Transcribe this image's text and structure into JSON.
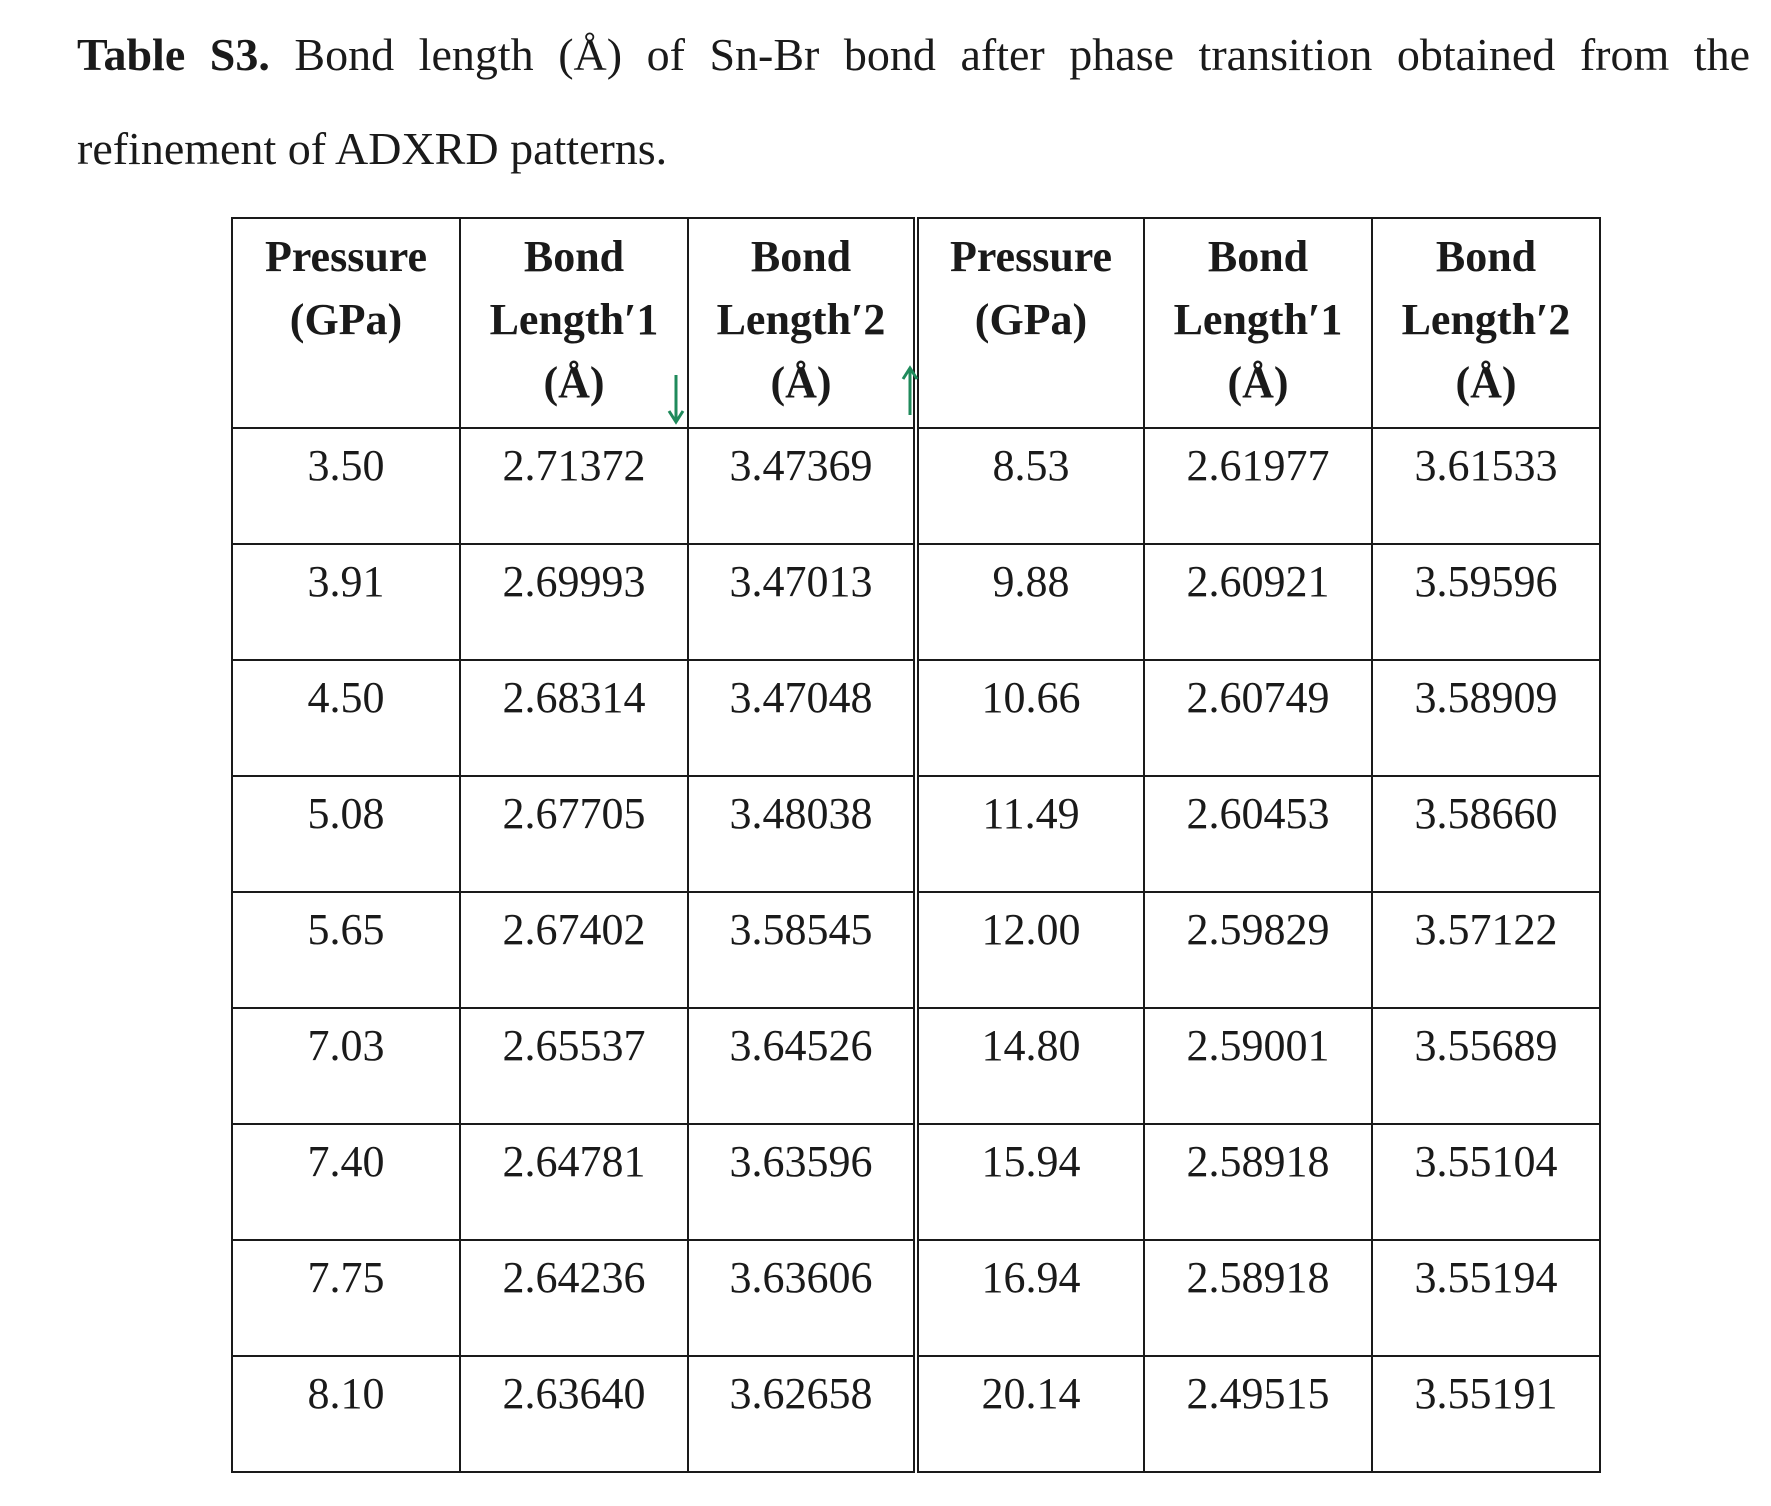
{
  "caption": {
    "label": "Table S3.",
    "text": " Bond length (Å) of Sn-Br bond after phase transition obtained from the refinement of ADXRD patterns."
  },
  "table": {
    "headers": [
      [
        "Pressure",
        "(GPa)",
        ""
      ],
      [
        "Bond",
        "Length′1",
        "(Å)"
      ],
      [
        "Bond",
        "Length′2",
        "(Å)"
      ],
      [
        "Pressure",
        "(GPa)",
        ""
      ],
      [
        "Bond",
        "Length′1",
        "(Å)"
      ],
      [
        "Bond",
        "Length′2",
        "(Å)"
      ]
    ],
    "rows": [
      [
        "3.50",
        "2.71372",
        "3.47369",
        "8.53",
        "2.61977",
        "3.61533"
      ],
      [
        "3.91",
        "2.69993",
        "3.47013",
        "9.88",
        "2.60921",
        "3.59596"
      ],
      [
        "4.50",
        "2.68314",
        "3.47048",
        "10.66",
        "2.60749",
        "3.58909"
      ],
      [
        "5.08",
        "2.67705",
        "3.48038",
        "11.49",
        "2.60453",
        "3.58660"
      ],
      [
        "5.65",
        "2.67402",
        "3.58545",
        "12.00",
        "2.59829",
        "3.57122"
      ],
      [
        "7.03",
        "2.65537",
        "3.64526",
        "14.80",
        "2.59001",
        "3.55689"
      ],
      [
        "7.40",
        "2.64781",
        "3.63596",
        "15.94",
        "2.58918",
        "3.55104"
      ],
      [
        "7.75",
        "2.64236",
        "3.63606",
        "16.94",
        "2.58918",
        "3.55194"
      ],
      [
        "8.10",
        "2.63640",
        "3.62658",
        "20.14",
        "2.49515",
        "3.55191"
      ]
    ]
  },
  "annotations": {
    "arrow_color": "#1f8a5b",
    "bond1_trend": "down-arrow-icon",
    "bond2_trend": "up-arrow-icon"
  }
}
